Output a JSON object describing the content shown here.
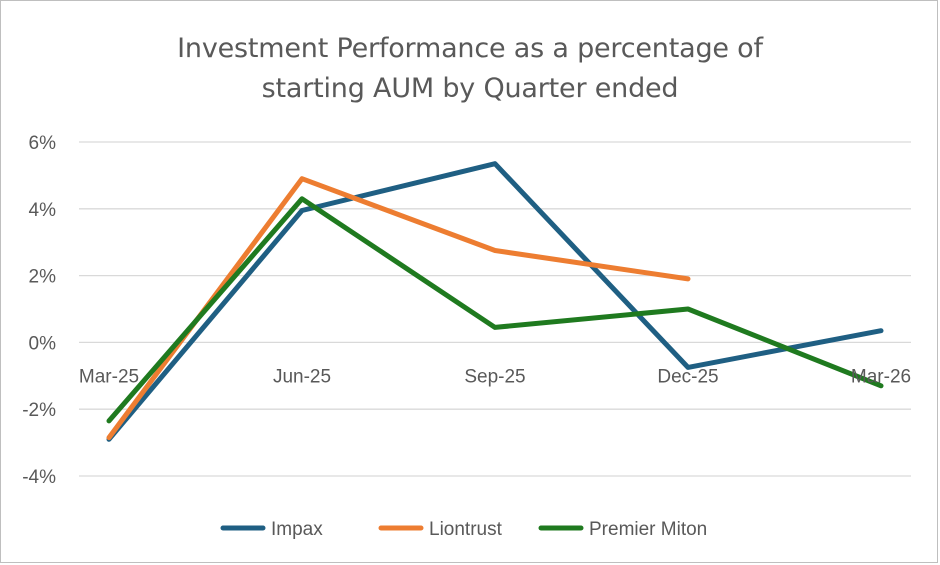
{
  "chart_data": {
    "type": "line",
    "title_lines": [
      "Investment Performance as a percentage of",
      "starting AUM by Quarter ended"
    ],
    "categories": [
      "Mar-25",
      "Jun-25",
      "Sep-25",
      "Dec-25",
      "Mar-26"
    ],
    "y_ticks": [
      -4,
      -2,
      0,
      2,
      4,
      6
    ],
    "y_tick_labels": [
      "-4%",
      "-2%",
      "0%",
      "2%",
      "4%",
      "6%"
    ],
    "ylim": [
      -4,
      6
    ],
    "grid": true,
    "legend_position": "bottom",
    "series": [
      {
        "name": "Impax",
        "color": "#1f5f83",
        "values": [
          -2.9,
          3.95,
          5.35,
          -0.75,
          0.35
        ]
      },
      {
        "name": "Liontrust",
        "color": "#ed7d31",
        "values": [
          -2.85,
          4.9,
          2.75,
          1.9,
          null
        ]
      },
      {
        "name": "Premier Miton",
        "color": "#1f7a1f",
        "values": [
          -2.35,
          4.3,
          0.45,
          1.0,
          -1.3
        ]
      }
    ]
  }
}
